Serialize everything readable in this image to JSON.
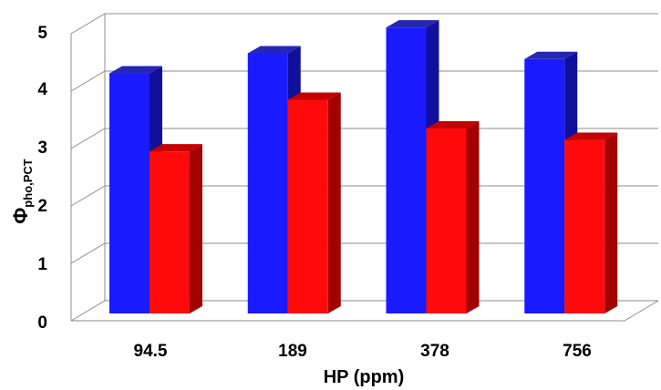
{
  "chart_data": {
    "type": "bar",
    "title": "",
    "xlabel": "HP (ppm)",
    "ylabel": {
      "symbol": "Φ",
      "subscript": "pho,PCT"
    },
    "categories": [
      "94.5",
      "189",
      "378",
      "756"
    ],
    "y_ticks": [
      "0",
      "1",
      "2",
      "3",
      "4",
      "5"
    ],
    "ylim": [
      0,
      5
    ],
    "grid": true,
    "legend": "none",
    "series": [
      {
        "values": [
          4.15,
          4.5,
          4.95,
          4.4
        ],
        "color": "#1a1aff",
        "side_color": "#10109c",
        "top_color": "#2626b4"
      },
      {
        "values": [
          2.95,
          3.85,
          3.35,
          3.15
        ],
        "color": "#ff0a0a",
        "side_color": "#a30000",
        "top_color": "#c40000"
      }
    ]
  }
}
